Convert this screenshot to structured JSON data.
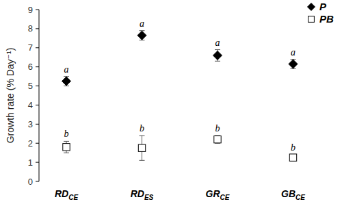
{
  "chart_data": {
    "type": "scatter",
    "y_label": "Growth rate (% Day⁻¹)",
    "categories": [
      "RDCE",
      "RDES",
      "GRCE",
      "GBCE"
    ],
    "ylim": [
      0,
      9
    ],
    "yticks": [
      0,
      1,
      2,
      3,
      4,
      5,
      6,
      7,
      8,
      9
    ],
    "grid": false,
    "legend": "top-right",
    "series": [
      {
        "name": "P",
        "color": "#000000",
        "marker": "diamond",
        "values": [
          5.25,
          7.65,
          6.6,
          6.15
        ],
        "errors": [
          0.25,
          0.25,
          0.3,
          0.25
        ],
        "annotations": [
          "a",
          "a",
          "a",
          "a"
        ]
      },
      {
        "name": "PB",
        "color": "#000000",
        "marker": "open-square",
        "values": [
          1.8,
          1.75,
          2.2,
          1.25
        ],
        "errors": [
          0.3,
          0.65,
          0.2,
          0.15
        ],
        "annotations": [
          "b",
          "b",
          "b",
          "b"
        ]
      }
    ]
  }
}
